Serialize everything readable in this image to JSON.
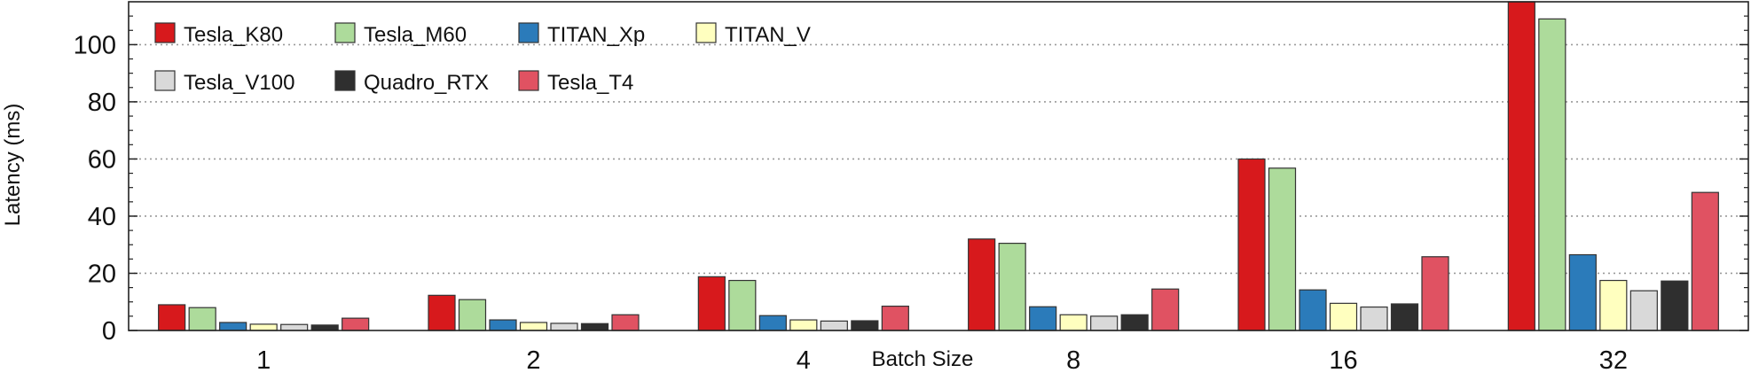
{
  "chart_data": {
    "type": "bar",
    "xlabel": "Batch Size",
    "ylabel": "Latency (ms)",
    "ylim": [
      0,
      115
    ],
    "yticks": [
      0,
      20,
      40,
      60,
      80,
      100
    ],
    "grid": "horizontal dotted",
    "legend_position": "top-left",
    "categories": [
      "1",
      "2",
      "4",
      "8",
      "16",
      "32"
    ],
    "series": [
      {
        "name": "Tesla_K80",
        "color": "#d7191c",
        "values": [
          9,
          12.3,
          18.8,
          32,
          60,
          115
        ]
      },
      {
        "name": "Tesla_M60",
        "color": "#addb9b",
        "values": [
          8,
          10.8,
          17.5,
          30.5,
          56.8,
          109
        ]
      },
      {
        "name": "TITAN_Xp",
        "color": "#2b7bba",
        "values": [
          2.8,
          3.7,
          5.2,
          8.3,
          14.2,
          26.5
        ]
      },
      {
        "name": "TITAN_V",
        "color": "#ffffbf",
        "values": [
          2.2,
          2.8,
          3.7,
          5.5,
          9.5,
          17.5
        ]
      },
      {
        "name": "Tesla_V100",
        "color": "#d9d9d9",
        "values": [
          2.1,
          2.5,
          3.3,
          5,
          8.2,
          13.9
        ]
      },
      {
        "name": "Quadro_RTX",
        "color": "#2f2f2f",
        "values": [
          1.9,
          2.4,
          3.4,
          5.5,
          9.3,
          17.3
        ]
      },
      {
        "name": "Tesla_T4",
        "color": "#e05262",
        "values": [
          4.3,
          5.5,
          8.5,
          14.5,
          25.8,
          48.3
        ]
      }
    ]
  }
}
